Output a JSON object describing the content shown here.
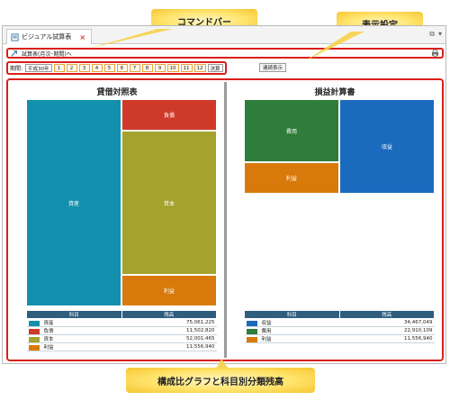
{
  "callouts": {
    "command_bar": "コマンドバー",
    "display_settings": "表示設定",
    "bottom": "構成比グラフと科目別分類残高"
  },
  "tab": {
    "title": "ビジュアル試算表",
    "close": "×"
  },
  "window_tools": {
    "left": "⧉",
    "right": "▾"
  },
  "command_bar": {
    "label": "試算表(月次･期間)へ"
  },
  "period": {
    "label": "期間:",
    "era": "平成30年",
    "months": [
      "1",
      "2",
      "3",
      "4",
      "5",
      "6",
      "7",
      "8",
      "9",
      "10",
      "11",
      "12"
    ],
    "settlement": "決算",
    "continuous": "連続表示"
  },
  "balance_sheet": {
    "title": "貸借対照表",
    "blocks": {
      "assets": "資産",
      "liabilities": "負債",
      "capital": "資本",
      "profit": "利益"
    },
    "table": {
      "headers": [
        "科目",
        "残高"
      ],
      "rows": [
        {
          "name": "資産",
          "value": "75,061,225",
          "color": "#1390ae"
        },
        {
          "name": "負債",
          "value": "11,502,820",
          "color": "#cf3a28"
        },
        {
          "name": "資本",
          "value": "52,001,465",
          "color": "#a3a32d"
        },
        {
          "name": "利益",
          "value": "11,556,940",
          "color": "#d87a0b"
        }
      ]
    }
  },
  "income_statement": {
    "title": "損益計算書",
    "blocks": {
      "expenses": "費用",
      "revenue": "収益",
      "profit": "利益"
    },
    "table": {
      "headers": [
        "科目",
        "残高"
      ],
      "rows": [
        {
          "name": "収益",
          "value": "34,467,049",
          "color": "#1a6bbd"
        },
        {
          "name": "費用",
          "value": "22,910,109",
          "color": "#2f7d3a"
        },
        {
          "name": "利益",
          "value": "11,556,940",
          "color": "#d87a0b"
        }
      ]
    }
  }
}
